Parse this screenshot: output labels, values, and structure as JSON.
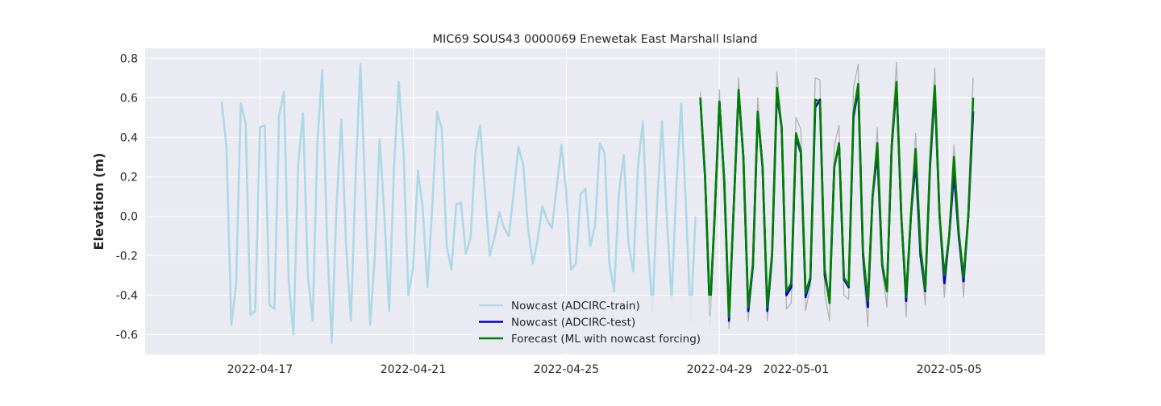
{
  "chart_data": {
    "type": "line",
    "title": "MIC69 SOUS43 0000069 Enewetak East Marshall Island",
    "xlabel": "",
    "ylabel": "Elevation (m)",
    "xlim": [
      "2022-04-14T00:00",
      "2022-05-07T12:00"
    ],
    "ylim": [
      -0.7,
      0.85
    ],
    "x_ticks": [
      "2022-04-17",
      "2022-04-21",
      "2022-04-25",
      "2022-04-29",
      "2022-05-01",
      "2022-05-05"
    ],
    "y_ticks": [
      -0.6,
      -0.4,
      -0.2,
      0.0,
      0.2,
      0.4,
      0.6,
      0.8
    ],
    "grid": true,
    "legend_position": "lower center",
    "colors": {
      "background": "#EAEAF2",
      "grid": "#FFFFFF",
      "train": "#ADD8E6",
      "test": "#0000CD",
      "forecast": "#008000",
      "reference": "#B0B0B0"
    },
    "series": [
      {
        "name": "Nowcast (ADCIRC-train)",
        "role": "train",
        "x_start": "2022-04-16T00:00",
        "dx_hours": 3,
        "values": [
          0.58,
          0.35,
          -0.55,
          -0.35,
          0.57,
          0.47,
          -0.5,
          -0.48,
          0.45,
          0.46,
          -0.45,
          -0.47,
          0.51,
          0.63,
          -0.33,
          -0.6,
          0.27,
          0.52,
          -0.3,
          -0.53,
          0.38,
          0.74,
          -0.12,
          -0.64,
          0.05,
          0.49,
          -0.15,
          -0.53,
          0.22,
          0.77,
          0.1,
          -0.55,
          -0.2,
          0.39,
          0.0,
          -0.48,
          0.25,
          0.68,
          0.32,
          -0.4,
          -0.26,
          0.23,
          0.04,
          -0.36,
          0.05,
          0.53,
          0.44,
          -0.15,
          -0.27,
          0.06,
          0.07,
          -0.19,
          -0.11,
          0.32,
          0.46,
          0.12,
          -0.2,
          -0.11,
          0.02,
          -0.06,
          -0.1,
          0.12,
          0.35,
          0.26,
          -0.06,
          -0.24,
          -0.12,
          0.05,
          -0.02,
          -0.06,
          0.15,
          0.36,
          0.12,
          -0.27,
          -0.24,
          0.11,
          0.14,
          -0.15,
          -0.05,
          0.37,
          0.32,
          -0.24,
          -0.38,
          0.12,
          0.31,
          -0.14,
          -0.28,
          0.26,
          0.48,
          -0.12,
          -0.48,
          0.08,
          0.48,
          0.0,
          -0.43,
          0.15,
          0.57,
          0.05,
          -0.53,
          0.0
        ]
      },
      {
        "name": "Nowcast (ADCIRC-test)",
        "role": "test",
        "x_start": "2022-04-28T12:00",
        "dx_hours": 3,
        "values": [
          0.6,
          0.2,
          -0.5,
          0.0,
          0.58,
          0.18,
          -0.53,
          0.05,
          0.63,
          0.3,
          -0.48,
          -0.25,
          0.52,
          0.25,
          -0.48,
          -0.2,
          0.62,
          0.45,
          -0.4,
          -0.36,
          0.4,
          0.32,
          -0.41,
          -0.32,
          0.55,
          0.59,
          -0.3,
          -0.42,
          0.25,
          0.36,
          -0.32,
          -0.36,
          0.5,
          0.65,
          -0.2,
          -0.46,
          0.1,
          0.32,
          -0.25,
          -0.38,
          0.35,
          0.66,
          0.0,
          -0.43,
          0.0,
          0.28,
          -0.2,
          -0.38,
          0.25,
          0.63,
          0.0,
          -0.34,
          -0.1,
          0.22,
          -0.1,
          -0.33,
          0.0,
          0.53
        ]
      },
      {
        "name": "Forecast (ML with nowcast forcing)",
        "role": "forecast",
        "x_start": "2022-04-28T12:00",
        "dx_hours": 3,
        "values": [
          0.6,
          0.2,
          -0.48,
          0.0,
          0.58,
          0.18,
          -0.51,
          0.05,
          0.64,
          0.3,
          -0.46,
          -0.24,
          0.53,
          0.25,
          -0.46,
          -0.19,
          0.65,
          0.45,
          -0.38,
          -0.34,
          0.42,
          0.33,
          -0.39,
          -0.31,
          0.59,
          0.58,
          -0.27,
          -0.44,
          0.25,
          0.37,
          -0.31,
          -0.35,
          0.52,
          0.67,
          -0.18,
          -0.43,
          0.1,
          0.37,
          -0.24,
          -0.38,
          0.36,
          0.68,
          0.0,
          -0.41,
          0.0,
          0.34,
          -0.16,
          -0.37,
          0.27,
          0.66,
          0.0,
          -0.3,
          -0.1,
          0.3,
          -0.08,
          -0.31,
          0.0,
          0.6
        ]
      },
      {
        "role": "reference",
        "x_start": "2022-04-28T12:00",
        "dx_hours": 3,
        "values": [
          0.63,
          0.15,
          -0.56,
          0.0,
          0.64,
          0.08,
          -0.57,
          0.05,
          0.7,
          0.28,
          -0.53,
          -0.28,
          0.6,
          0.26,
          -0.53,
          -0.24,
          0.73,
          0.46,
          -0.47,
          -0.44,
          0.5,
          0.44,
          -0.48,
          -0.35,
          0.7,
          0.69,
          -0.39,
          -0.53,
          0.36,
          0.46,
          -0.4,
          -0.42,
          0.65,
          0.77,
          -0.26,
          -0.56,
          0.1,
          0.45,
          -0.28,
          -0.46,
          0.42,
          0.78,
          0.0,
          -0.51,
          0.05,
          0.42,
          -0.2,
          -0.45,
          0.33,
          0.75,
          0.0,
          -0.41,
          -0.06,
          0.36,
          -0.08,
          -0.41,
          0.0,
          0.7
        ]
      }
    ]
  }
}
